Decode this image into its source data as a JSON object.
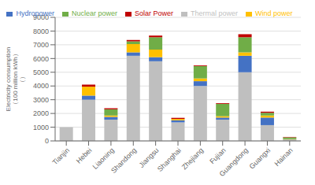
{
  "chart_data": {
    "type": "bar",
    "stacked": true,
    "categories": [
      "Tianjin",
      "Hebei",
      "Liaoning",
      "Shandong",
      "Jiangsu",
      "Shanghai",
      "Zhejiang",
      "Fujian",
      "Guangdong",
      "Guangxi",
      "Hainan"
    ],
    "series": [
      {
        "name": "Thermal power",
        "color": "#bfbfbf",
        "values": [
          1000,
          3000,
          1550,
          6200,
          5800,
          1350,
          4000,
          1550,
          5000,
          1150,
          80
        ]
      },
      {
        "name": "Hydropower",
        "color": "#4472c4",
        "values": [
          0,
          300,
          200,
          250,
          300,
          150,
          350,
          150,
          1200,
          550,
          20
        ]
      },
      {
        "name": "Wind power",
        "color": "#ffc000",
        "values": [
          0,
          650,
          100,
          600,
          550,
          100,
          200,
          100,
          250,
          150,
          30
        ]
      },
      {
        "name": "Nuclear power",
        "color": "#70ad47",
        "values": [
          0,
          0,
          450,
          200,
          900,
          0,
          900,
          900,
          1100,
          200,
          130
        ]
      },
      {
        "name": "Solar Power",
        "color": "#c00000",
        "values": [
          0,
          150,
          80,
          100,
          120,
          80,
          50,
          50,
          220,
          80,
          30
        ]
      }
    ],
    "y_label": "Electricity consumption\n（100 million kWh）\n（）",
    "ylim": [
      0,
      9000
    ],
    "yticks": [
      0,
      1000,
      2000,
      3000,
      4000,
      5000,
      6000,
      7000,
      8000,
      9000
    ],
    "grid": true,
    "legend": "top"
  }
}
